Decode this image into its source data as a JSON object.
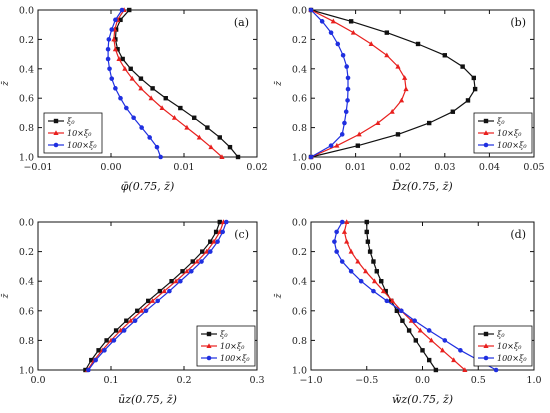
{
  "colors": {
    "black": "#111111",
    "red": "#e8201e",
    "blue": "#1f2fe0"
  },
  "legend": [
    {
      "label": "ξ₀",
      "color": "#111111",
      "marker": "square"
    },
    {
      "label": "10×ξ₀",
      "color": "#e8201e",
      "marker": "triangle"
    },
    {
      "label": "100×ξ₀",
      "color": "#1f2fe0",
      "marker": "circle"
    }
  ],
  "chart_data": [
    {
      "panel": "(a)",
      "type": "line",
      "xlabel": "φ̄(0.75, z̄)",
      "ylabel": "z̄",
      "xlim": [
        -0.01,
        0.02
      ],
      "ylim": [
        0.0,
        1.0
      ],
      "y_inverted": true,
      "xticks": [
        -0.01,
        0.0,
        0.01,
        0.02
      ],
      "xtick_labels": [
        "−0.01",
        "0.00",
        "0.01",
        "0.02"
      ],
      "yticks": [
        0.0,
        0.2,
        0.4,
        0.6,
        0.8,
        1.0
      ],
      "ytick_labels": [
        "0.0",
        "0.2",
        "0.4",
        "0.6",
        "0.8",
        "1.0"
      ],
      "legend_position": "bottom-left",
      "series": [
        {
          "color": "#111111",
          "marker": "square",
          "x": [
            0.0025,
            0.0013,
            0.0007,
            0.0006,
            0.0009,
            0.0016,
            0.0027,
            0.0041,
            0.0057,
            0.0075,
            0.0095,
            0.0114,
            0.0132,
            0.0149,
            0.0163,
            0.0174
          ],
          "y": [
            0.0,
            0.067,
            0.133,
            0.2,
            0.267,
            0.333,
            0.4,
            0.467,
            0.533,
            0.6,
            0.667,
            0.733,
            0.8,
            0.867,
            0.933,
            1.0
          ]
        },
        {
          "color": "#e8201e",
          "marker": "triangle",
          "x": [
            0.0018,
            0.0009,
            0.0005,
            0.0004,
            0.0006,
            0.0011,
            0.0019,
            0.0029,
            0.0041,
            0.0055,
            0.007,
            0.0087,
            0.0104,
            0.0121,
            0.0137,
            0.0152
          ],
          "y": [
            0.0,
            0.067,
            0.133,
            0.2,
            0.267,
            0.333,
            0.4,
            0.467,
            0.533,
            0.6,
            0.667,
            0.733,
            0.8,
            0.867,
            0.933,
            1.0
          ]
        },
        {
          "color": "#1f2fe0",
          "marker": "circle",
          "x": [
            0.0015,
            0.0006,
            0.0001,
            -0.0003,
            -0.0004,
            -0.0004,
            -0.0002,
            0.0001,
            0.0006,
            0.0013,
            0.0021,
            0.0031,
            0.0042,
            0.0053,
            0.0063,
            0.0068
          ],
          "y": [
            0.0,
            0.067,
            0.133,
            0.2,
            0.267,
            0.333,
            0.4,
            0.467,
            0.533,
            0.6,
            0.667,
            0.733,
            0.8,
            0.867,
            0.933,
            1.0
          ]
        }
      ]
    },
    {
      "panel": "(b)",
      "type": "line",
      "xlabel": "D̄z(0.75, z̄)",
      "ylabel": "z̄",
      "xlim": [
        0.0,
        0.05
      ],
      "ylim": [
        0.0,
        1.0
      ],
      "y_inverted": true,
      "xticks": [
        0.0,
        0.01,
        0.02,
        0.03,
        0.04,
        0.05
      ],
      "xtick_labels": [
        "0.00",
        "0.01",
        "0.02",
        "0.03",
        "0.04",
        "0.05"
      ],
      "yticks": [
        0.0,
        0.2,
        0.4,
        0.6,
        0.8,
        1.0
      ],
      "ytick_labels": [
        "0.0",
        "0.2",
        "0.4",
        "0.6",
        "0.8",
        "1.0"
      ],
      "legend_position": "bottom-right",
      "series": [
        {
          "color": "#111111",
          "marker": "square",
          "x": [
            0.0,
            0.009,
            0.017,
            0.024,
            0.03,
            0.034,
            0.0365,
            0.0368,
            0.0352,
            0.0318,
            0.0265,
            0.0195,
            0.0105,
            0.0
          ],
          "y": [
            0.0,
            0.077,
            0.154,
            0.231,
            0.308,
            0.385,
            0.462,
            0.538,
            0.615,
            0.692,
            0.769,
            0.846,
            0.923,
            1.0
          ]
        },
        {
          "color": "#e8201e",
          "marker": "triangle",
          "x": [
            0.0,
            0.005,
            0.0095,
            0.0135,
            0.017,
            0.0195,
            0.021,
            0.0213,
            0.0203,
            0.0182,
            0.015,
            0.0108,
            0.0058,
            0.0
          ],
          "y": [
            0.0,
            0.077,
            0.154,
            0.231,
            0.308,
            0.385,
            0.462,
            0.538,
            0.615,
            0.692,
            0.769,
            0.846,
            0.923,
            1.0
          ]
        },
        {
          "color": "#1f2fe0",
          "marker": "circle",
          "x": [
            0.0,
            0.0025,
            0.0045,
            0.006,
            0.0072,
            0.008,
            0.0083,
            0.0083,
            0.0082,
            0.0079,
            0.0075,
            0.007,
            0.0045,
            0.0
          ],
          "y": [
            0.0,
            0.077,
            0.154,
            0.231,
            0.308,
            0.385,
            0.462,
            0.538,
            0.615,
            0.692,
            0.769,
            0.846,
            0.923,
            1.0
          ]
        }
      ]
    },
    {
      "panel": "(c)",
      "type": "line",
      "xlabel": "ūz(0.75, z̄)",
      "ylabel": "z̄",
      "xlim": [
        0.0,
        0.3
      ],
      "ylim": [
        0.0,
        1.0
      ],
      "y_inverted": true,
      "xticks": [
        0.0,
        0.1,
        0.2,
        0.3
      ],
      "xtick_labels": [
        "0.0",
        "0.1",
        "0.2",
        "0.3"
      ],
      "yticks": [
        0.0,
        0.2,
        0.4,
        0.6,
        0.8,
        1.0
      ],
      "ytick_labels": [
        "0.0",
        "0.2",
        "0.4",
        "0.6",
        "0.8",
        "1.0"
      ],
      "legend_position": "bottom-right",
      "series": [
        {
          "color": "#111111",
          "marker": "square",
          "x": [
            0.249,
            0.244,
            0.236,
            0.225,
            0.212,
            0.198,
            0.183,
            0.167,
            0.151,
            0.136,
            0.121,
            0.107,
            0.094,
            0.083,
            0.073,
            0.065
          ],
          "y": [
            0.0,
            0.067,
            0.133,
            0.2,
            0.267,
            0.333,
            0.4,
            0.467,
            0.533,
            0.6,
            0.667,
            0.733,
            0.8,
            0.867,
            0.933,
            1.0
          ]
        },
        {
          "color": "#e8201e",
          "marker": "triangle",
          "x": [
            0.254,
            0.249,
            0.241,
            0.231,
            0.218,
            0.204,
            0.189,
            0.173,
            0.157,
            0.142,
            0.127,
            0.113,
            0.1,
            0.088,
            0.077,
            0.068
          ],
          "y": [
            0.0,
            0.067,
            0.133,
            0.2,
            0.267,
            0.333,
            0.4,
            0.467,
            0.533,
            0.6,
            0.667,
            0.733,
            0.8,
            0.867,
            0.933,
            1.0
          ]
        },
        {
          "color": "#1f2fe0",
          "marker": "circle",
          "x": [
            0.258,
            0.253,
            0.246,
            0.236,
            0.224,
            0.21,
            0.195,
            0.18,
            0.164,
            0.148,
            0.133,
            0.118,
            0.104,
            0.091,
            0.079,
            0.069
          ],
          "y": [
            0.0,
            0.067,
            0.133,
            0.2,
            0.267,
            0.333,
            0.4,
            0.467,
            0.533,
            0.6,
            0.667,
            0.733,
            0.8,
            0.867,
            0.933,
            1.0
          ]
        }
      ]
    },
    {
      "panel": "(d)",
      "type": "line",
      "xlabel": "w̄z(0.75, z̄)",
      "ylabel": "z̄",
      "xlim": [
        -1.0,
        1.0
      ],
      "ylim": [
        0.0,
        1.0
      ],
      "y_inverted": true,
      "xticks": [
        -1.0,
        -0.5,
        0.0,
        0.5,
        1.0
      ],
      "xtick_labels": [
        "−1.0",
        "−0.5",
        "0.0",
        "0.5",
        "1.0"
      ],
      "yticks": [
        0.0,
        0.2,
        0.4,
        0.6,
        0.8,
        1.0
      ],
      "ytick_labels": [
        "0.0",
        "0.2",
        "0.4",
        "0.6",
        "0.8",
        "1.0"
      ],
      "legend_position": "bottom-right",
      "series": [
        {
          "color": "#111111",
          "marker": "square",
          "x": [
            -0.5,
            -0.5,
            -0.49,
            -0.47,
            -0.44,
            -0.41,
            -0.37,
            -0.33,
            -0.28,
            -0.23,
            -0.18,
            -0.12,
            -0.06,
            0.0,
            0.06,
            0.12
          ],
          "y": [
            0.0,
            0.067,
            0.133,
            0.2,
            0.267,
            0.333,
            0.4,
            0.467,
            0.533,
            0.6,
            0.667,
            0.733,
            0.8,
            0.867,
            0.933,
            1.0
          ]
        },
        {
          "color": "#e8201e",
          "marker": "triangle",
          "x": [
            -0.68,
            -0.7,
            -0.68,
            -0.64,
            -0.58,
            -0.51,
            -0.43,
            -0.35,
            -0.27,
            -0.19,
            -0.1,
            -0.02,
            0.08,
            0.18,
            0.28,
            0.38
          ],
          "y": [
            0.0,
            0.067,
            0.133,
            0.2,
            0.267,
            0.333,
            0.4,
            0.467,
            0.533,
            0.6,
            0.667,
            0.733,
            0.8,
            0.867,
            0.933,
            1.0
          ]
        },
        {
          "color": "#1f2fe0",
          "marker": "circle",
          "x": [
            -0.72,
            -0.77,
            -0.79,
            -0.77,
            -0.72,
            -0.64,
            -0.55,
            -0.44,
            -0.32,
            -0.19,
            -0.07,
            0.06,
            0.2,
            0.34,
            0.5,
            0.66
          ],
          "y": [
            0.0,
            0.067,
            0.133,
            0.2,
            0.267,
            0.333,
            0.4,
            0.467,
            0.533,
            0.6,
            0.667,
            0.733,
            0.8,
            0.867,
            0.933,
            1.0
          ]
        }
      ]
    }
  ]
}
